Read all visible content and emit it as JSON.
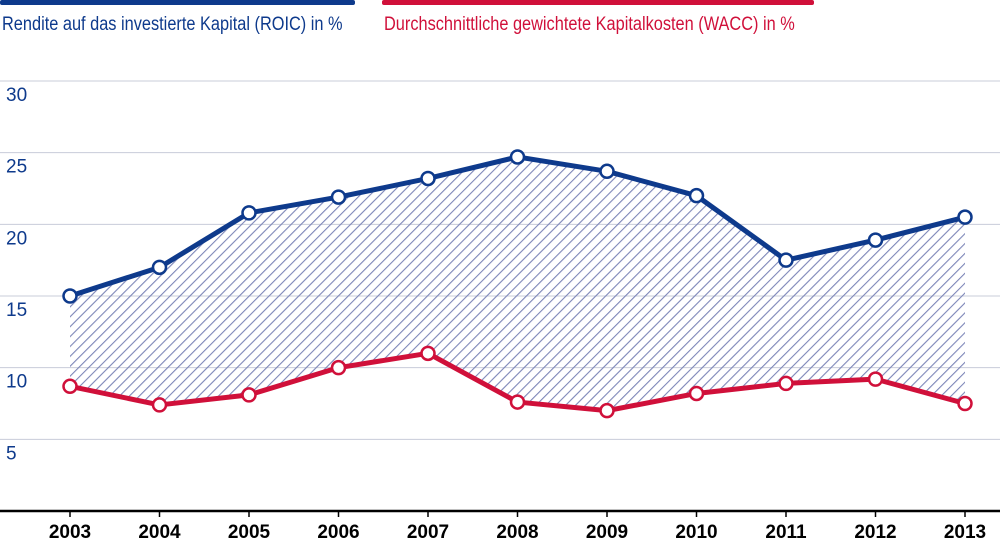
{
  "chart_data": {
    "type": "line",
    "title": "",
    "xlabel": "",
    "ylabel": "",
    "categories": [
      "2003",
      "2004",
      "2005",
      "2006",
      "2007",
      "2008",
      "2009",
      "2010",
      "2011",
      "2012",
      "2013"
    ],
    "series": [
      {
        "name": "Rendite auf das investierte Kapital (ROIC) in %",
        "color": "#0e3a8c",
        "values": [
          15.0,
          17.0,
          20.8,
          21.9,
          23.2,
          24.7,
          23.7,
          22.0,
          17.5,
          18.9,
          20.5
        ]
      },
      {
        "name": "Durchschnittliche gewichtete Kapitalkosten (WACC) in %",
        "color": "#d0103a",
        "values": [
          8.7,
          7.4,
          8.1,
          10.0,
          11.0,
          7.6,
          7.0,
          8.2,
          8.9,
          9.2,
          7.5
        ]
      }
    ],
    "yticks": [
      5,
      10,
      15,
      20,
      25,
      30
    ],
    "ylim": [
      0,
      30
    ],
    "grid": true,
    "fill_between": "hatched",
    "fill_color": "#7d86b8"
  }
}
